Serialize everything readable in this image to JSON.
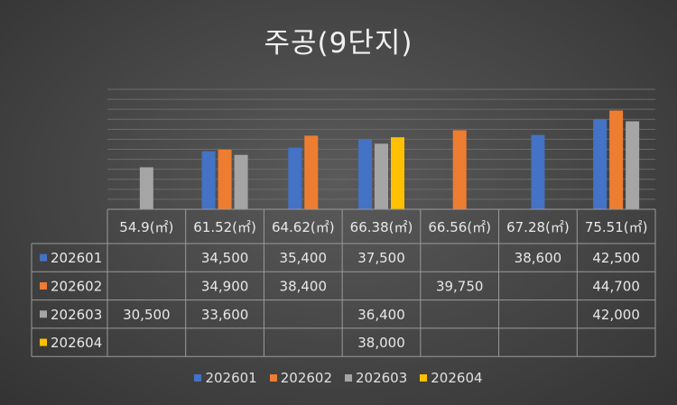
{
  "chart_data": {
    "type": "bar",
    "title": "주공(9단지)",
    "categories": [
      "54.9(㎡)",
      "61.52(㎡)",
      "64.62(㎡)",
      "66.38(㎡)",
      "66.56(㎡)",
      "67.28(㎡)",
      "75.51(㎡)"
    ],
    "series": [
      {
        "name": "202601",
        "color": "#4472c4",
        "values": [
          null,
          34500,
          35400,
          37500,
          null,
          38600,
          42500
        ],
        "labels": [
          "",
          "34,500",
          "35,400",
          "37,500",
          "",
          "38,600",
          "42,500"
        ]
      },
      {
        "name": "202602",
        "color": "#ed7d31",
        "values": [
          null,
          34900,
          38400,
          null,
          39750,
          null,
          44700
        ],
        "labels": [
          "",
          "34,900",
          "38,400",
          "",
          "39,750",
          "",
          "44,700"
        ]
      },
      {
        "name": "202603",
        "color": "#a5a5a5",
        "values": [
          30500,
          33600,
          null,
          36400,
          null,
          null,
          42000
        ],
        "labels": [
          "30,500",
          "33,600",
          "",
          "36,400",
          "",
          "",
          "42,000"
        ]
      },
      {
        "name": "202604",
        "color": "#ffc000",
        "values": [
          null,
          null,
          null,
          38000,
          null,
          null,
          null
        ],
        "labels": [
          "",
          "",
          "",
          "38,000",
          "",
          "",
          ""
        ]
      }
    ],
    "ylim": [
      20000,
      50000
    ],
    "grid": true,
    "legend_position": "bottom",
    "data_table": true
  }
}
